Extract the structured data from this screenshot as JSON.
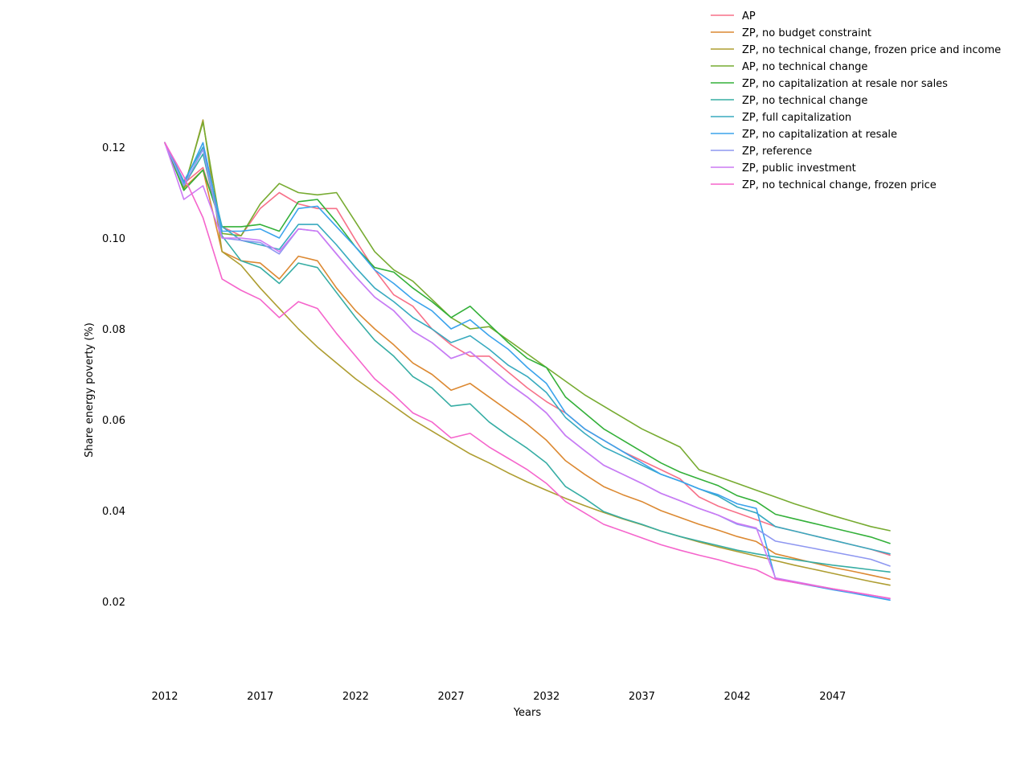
{
  "chart_data": {
    "type": "line",
    "title": "",
    "xlabel": "Years",
    "ylabel": "Share energy poverty (%)",
    "xlim": [
      2012,
      2050
    ],
    "ylim": [
      0.0055,
      0.125
    ],
    "x_ticks": [
      2012,
      2017,
      2022,
      2027,
      2032,
      2037,
      2042,
      2047
    ],
    "y_ticks": [
      0.02,
      0.04,
      0.06,
      0.08,
      0.1,
      0.12
    ],
    "grid": false,
    "legend_position": "top-right",
    "x": [
      2012,
      2013,
      2014,
      2015,
      2016,
      2017,
      2018,
      2019,
      2020,
      2021,
      2022,
      2023,
      2024,
      2025,
      2026,
      2027,
      2028,
      2029,
      2030,
      2031,
      2032,
      2033,
      2034,
      2035,
      2036,
      2037,
      2038,
      2039,
      2040,
      2041,
      2042,
      2043,
      2044,
      2045,
      2046,
      2047,
      2048,
      2049,
      2050
    ],
    "series": [
      {
        "name": "AP",
        "color": "#f77189",
        "values": [
          0.121,
          0.112,
          0.1155,
          0.1025,
          0.1005,
          0.1065,
          0.11,
          0.1075,
          0.1065,
          0.1065,
          0.0995,
          0.093,
          0.0875,
          0.085,
          0.08,
          0.0765,
          0.074,
          0.074,
          0.0705,
          0.067,
          0.064,
          0.0615,
          0.058,
          0.0555,
          0.053,
          0.051,
          0.049,
          0.047,
          0.043,
          0.041,
          0.0395,
          0.038,
          0.0365,
          0.0355,
          0.0345,
          0.0335,
          0.0325,
          0.0315,
          0.0302
        ]
      },
      {
        "name": "ZP, no budget constraint",
        "color": "#dc8932",
        "values": [
          0.121,
          0.111,
          0.115,
          0.097,
          0.095,
          0.0945,
          0.091,
          0.096,
          0.095,
          0.089,
          0.084,
          0.08,
          0.0765,
          0.0725,
          0.07,
          0.0665,
          0.068,
          0.065,
          0.062,
          0.059,
          0.0555,
          0.051,
          0.048,
          0.0453,
          0.0435,
          0.042,
          0.04,
          0.0385,
          0.037,
          0.0357,
          0.0343,
          0.0332,
          0.0305,
          0.0295,
          0.0285,
          0.0275,
          0.0267,
          0.0258,
          0.0249
        ]
      },
      {
        "name": "ZP, no technical change, frozen price and income",
        "color": "#ae9d31",
        "values": [
          0.121,
          0.1105,
          0.126,
          0.097,
          0.094,
          0.089,
          0.0845,
          0.08,
          0.076,
          0.0725,
          0.069,
          0.066,
          0.063,
          0.06,
          0.0575,
          0.055,
          0.0525,
          0.0505,
          0.0483,
          0.0463,
          0.0445,
          0.0427,
          0.0411,
          0.0396,
          0.0382,
          0.0369,
          0.0355,
          0.0343,
          0.0331,
          0.032,
          0.031,
          0.03,
          0.029,
          0.028,
          0.0271,
          0.0262,
          0.0253,
          0.0244,
          0.0236
        ]
      },
      {
        "name": "AP, no technical change",
        "color": "#77ab31",
        "values": [
          0.121,
          0.111,
          0.1255,
          0.101,
          0.1005,
          0.1075,
          0.112,
          0.11,
          0.1095,
          0.11,
          0.1035,
          0.097,
          0.093,
          0.0905,
          0.0865,
          0.0825,
          0.08,
          0.0805,
          0.0775,
          0.0745,
          0.0715,
          0.0685,
          0.0655,
          0.063,
          0.0605,
          0.058,
          0.056,
          0.054,
          0.049,
          0.0475,
          0.046,
          0.0445,
          0.043,
          0.0415,
          0.0402,
          0.0389,
          0.0377,
          0.0365,
          0.0356
        ]
      },
      {
        "name": "ZP, no capitalization at resale nor sales",
        "color": "#33b039",
        "values": [
          0.121,
          0.1105,
          0.115,
          0.1025,
          0.1025,
          0.103,
          0.1015,
          0.108,
          0.1085,
          0.1035,
          0.098,
          0.0935,
          0.0925,
          0.089,
          0.086,
          0.0825,
          0.085,
          0.081,
          0.077,
          0.0735,
          0.0715,
          0.065,
          0.0615,
          0.058,
          0.0555,
          0.053,
          0.0505,
          0.0485,
          0.047,
          0.0455,
          0.0433,
          0.042,
          0.0392,
          0.0382,
          0.0372,
          0.0362,
          0.0352,
          0.0342,
          0.0328
        ]
      },
      {
        "name": "ZP, no technical change",
        "color": "#36ada4",
        "values": [
          0.121,
          0.1115,
          0.1185,
          0.1005,
          0.095,
          0.0935,
          0.09,
          0.0945,
          0.0935,
          0.088,
          0.0825,
          0.0775,
          0.074,
          0.0695,
          0.067,
          0.063,
          0.0635,
          0.0595,
          0.0565,
          0.0537,
          0.0505,
          0.0453,
          0.0427,
          0.0398,
          0.0383,
          0.037,
          0.0355,
          0.0343,
          0.0333,
          0.0323,
          0.0313,
          0.0305,
          0.0298,
          0.0292,
          0.0286,
          0.028,
          0.0275,
          0.027,
          0.0265
        ]
      },
      {
        "name": "ZP, full capitalization",
        "color": "#38aabf",
        "values": [
          0.121,
          0.1125,
          0.12,
          0.1025,
          0.0995,
          0.0985,
          0.0975,
          0.103,
          0.103,
          0.0985,
          0.0935,
          0.089,
          0.086,
          0.0825,
          0.08,
          0.077,
          0.0785,
          0.0755,
          0.072,
          0.0695,
          0.066,
          0.0605,
          0.057,
          0.054,
          0.052,
          0.05,
          0.048,
          0.0465,
          0.0448,
          0.0432,
          0.0408,
          0.0395,
          0.0365,
          0.0355,
          0.0345,
          0.0335,
          0.0325,
          0.0315,
          0.0305
        ]
      },
      {
        "name": "ZP, no capitalization at resale",
        "color": "#3ba3ec",
        "values": [
          0.121,
          0.112,
          0.121,
          0.1015,
          0.1015,
          0.102,
          0.1,
          0.1065,
          0.107,
          0.1025,
          0.098,
          0.093,
          0.09,
          0.0865,
          0.084,
          0.08,
          0.082,
          0.0785,
          0.0755,
          0.0715,
          0.068,
          0.0615,
          0.058,
          0.0555,
          0.053,
          0.0505,
          0.048,
          0.0465,
          0.0448,
          0.0435,
          0.0415,
          0.0405,
          0.025,
          0.0242,
          0.0234,
          0.0226,
          0.0219,
          0.0211,
          0.0203
        ]
      },
      {
        "name": "ZP, reference",
        "color": "#8e97f1",
        "values": [
          0.121,
          0.1115,
          0.1195,
          0.1,
          0.0995,
          0.099,
          0.0965,
          0.102,
          0.1015,
          0.0965,
          0.0915,
          0.087,
          0.084,
          0.0795,
          0.077,
          0.0735,
          0.075,
          0.0715,
          0.068,
          0.065,
          0.0615,
          0.0565,
          0.0532,
          0.05,
          0.048,
          0.046,
          0.0438,
          0.0422,
          0.0405,
          0.039,
          0.037,
          0.036,
          0.0333,
          0.0325,
          0.0317,
          0.0309,
          0.0301,
          0.0293,
          0.0278
        ]
      },
      {
        "name": "ZP, public investment",
        "color": "#cc7af4",
        "values": [
          0.121,
          0.1085,
          0.1115,
          0.1,
          0.1,
          0.0995,
          0.097,
          0.102,
          0.1015,
          0.0965,
          0.0915,
          0.087,
          0.084,
          0.0795,
          0.077,
          0.0735,
          0.075,
          0.0715,
          0.068,
          0.065,
          0.0615,
          0.0565,
          0.0532,
          0.05,
          0.048,
          0.046,
          0.0438,
          0.0422,
          0.0405,
          0.039,
          0.0372,
          0.0362,
          0.0252,
          0.0244,
          0.0236,
          0.0228,
          0.0221,
          0.0214,
          0.0206
        ]
      },
      {
        "name": "ZP, no technical change, frozen price",
        "color": "#f565cc",
        "values": [
          0.121,
          0.1135,
          0.1045,
          0.091,
          0.0885,
          0.0865,
          0.0825,
          0.086,
          0.0845,
          0.079,
          0.074,
          0.069,
          0.0655,
          0.0615,
          0.0595,
          0.056,
          0.057,
          0.054,
          0.0515,
          0.049,
          0.046,
          0.042,
          0.0395,
          0.037,
          0.0355,
          0.034,
          0.0325,
          0.0313,
          0.0302,
          0.0292,
          0.028,
          0.027,
          0.0249,
          0.0242,
          0.0235,
          0.0228,
          0.0221,
          0.0214,
          0.0207
        ]
      }
    ],
    "extra_note": ""
  }
}
